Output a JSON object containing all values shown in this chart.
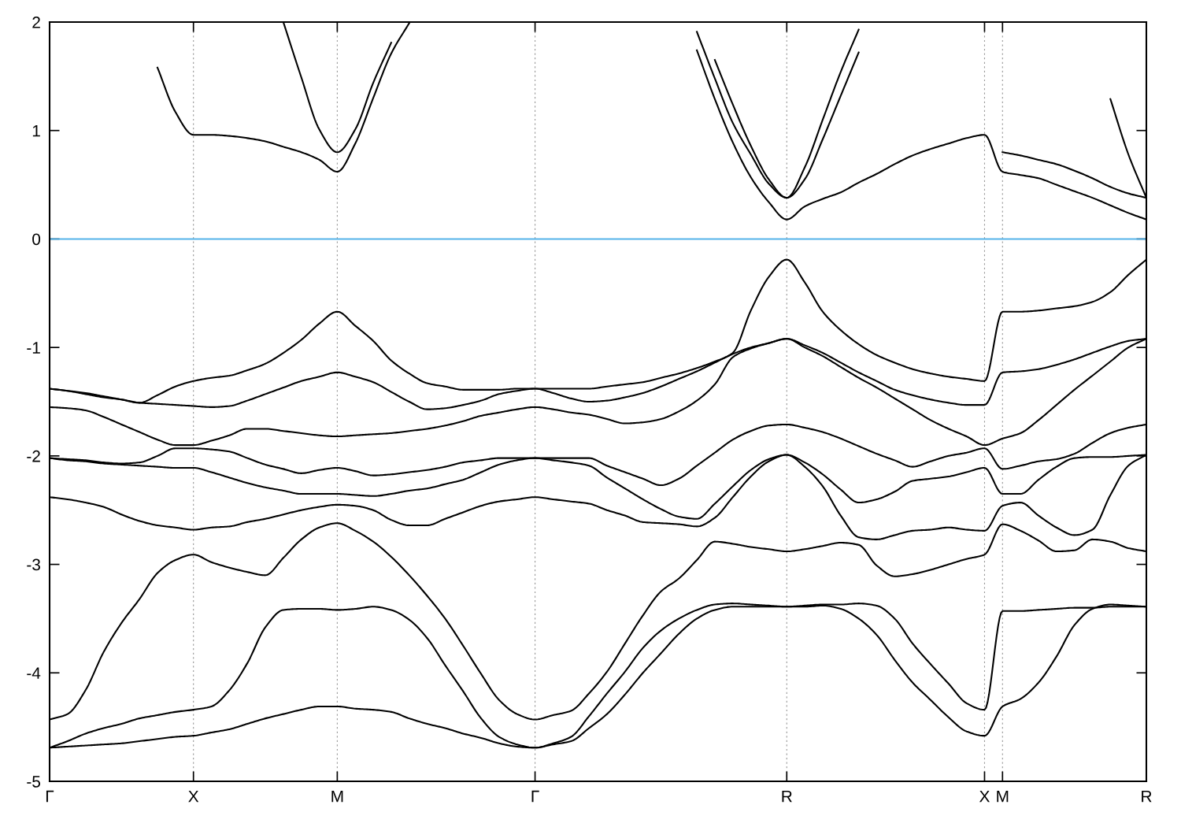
{
  "chart_data": {
    "type": "line",
    "categories": [
      "Γ",
      null,
      null,
      null,
      null,
      null,
      null,
      null,
      "X",
      null,
      null,
      null,
      null,
      null,
      null,
      null,
      "M",
      null,
      null,
      null,
      null,
      null,
      null,
      null,
      null,
      null,
      null,
      "Γ",
      null,
      null,
      null,
      null,
      null,
      null,
      null,
      null,
      null,
      null,
      null,
      null,
      null,
      "R",
      null,
      null,
      null,
      null,
      null,
      null,
      null,
      null,
      null,
      null,
      "X",
      "M",
      null,
      null,
      null,
      null,
      null,
      null,
      null,
      "R"
    ],
    "ylim": [
      -5,
      2
    ],
    "yticks": [
      -5,
      -4,
      -3,
      -2,
      -1,
      0,
      1,
      2
    ],
    "grid": "x",
    "line_style": "solid",
    "ref_lines": [
      {
        "axis": "y",
        "value": 0,
        "color": "#56b4e9",
        "line_style": "solid"
      }
    ],
    "series": [
      {
        "color": "#000000",
        "values": [
          -1.38,
          -1.4,
          -1.42,
          -1.45,
          -1.48,
          -1.51,
          -1.44,
          -1.36,
          -1.31,
          -1.28,
          -1.26,
          -1.21,
          -1.15,
          -1.05,
          -0.93,
          -0.78,
          -0.67,
          -0.8,
          -0.94,
          -1.12,
          -1.24,
          -1.33,
          -1.36,
          -1.39,
          -1.39,
          -1.39,
          -1.38,
          -1.38,
          -1.38,
          -1.38,
          -1.38,
          -1.36,
          -1.34,
          -1.32,
          -1.28,
          -1.24,
          -1.19,
          -1.13,
          -1.05,
          -0.66,
          -0.35,
          -0.19,
          -0.4,
          -0.67,
          -0.84,
          -0.97,
          -1.07,
          -1.14,
          -1.2,
          -1.24,
          -1.27,
          -1.29,
          -1.31,
          -0.67,
          -0.67,
          -0.66,
          -0.64,
          -0.62,
          -0.58,
          -0.49,
          -0.33,
          -0.19
        ]
      },
      {
        "color": "#000000",
        "values": [
          -1.38,
          -1.4,
          -1.43,
          -1.46,
          -1.48,
          -1.51,
          -1.52,
          -1.53,
          -1.54,
          -1.55,
          -1.54,
          -1.49,
          -1.43,
          -1.37,
          -1.31,
          -1.27,
          -1.23,
          -1.27,
          -1.32,
          -1.41,
          -1.5,
          -1.57,
          -1.56,
          -1.53,
          -1.49,
          -1.43,
          -1.4,
          -1.38,
          -1.42,
          -1.47,
          -1.5,
          -1.49,
          -1.46,
          -1.42,
          -1.36,
          -1.29,
          -1.22,
          -1.14,
          -1.06,
          -1.0,
          -0.96,
          -0.92,
          -0.98,
          -1.05,
          -1.14,
          -1.23,
          -1.31,
          -1.39,
          -1.44,
          -1.48,
          -1.51,
          -1.53,
          -1.53,
          -1.23,
          -1.22,
          -1.2,
          -1.16,
          -1.11,
          -1.05,
          -0.99,
          -0.94,
          -0.92
        ]
      },
      {
        "color": "#000000",
        "values": [
          -1.55,
          -1.56,
          -1.58,
          -1.64,
          -1.71,
          -1.78,
          -1.85,
          -1.9,
          -1.9,
          -1.86,
          -1.81,
          -1.75,
          -1.75,
          -1.77,
          -1.79,
          -1.81,
          -1.82,
          -1.81,
          -1.8,
          -1.79,
          -1.77,
          -1.75,
          -1.72,
          -1.68,
          -1.63,
          -1.6,
          -1.57,
          -1.55,
          -1.57,
          -1.6,
          -1.62,
          -1.66,
          -1.7,
          -1.69,
          -1.66,
          -1.59,
          -1.49,
          -1.34,
          -1.09,
          -1.01,
          -0.96,
          -0.92,
          -1.0,
          -1.08,
          -1.18,
          -1.28,
          -1.37,
          -1.47,
          -1.57,
          -1.67,
          -1.75,
          -1.82,
          -1.9,
          -1.84,
          -1.79,
          -1.67,
          -1.53,
          -1.39,
          -1.26,
          -1.13,
          -1.0,
          -0.92
        ]
      },
      {
        "color": "#000000",
        "values": [
          -2.02,
          -2.03,
          -2.04,
          -2.06,
          -2.07,
          -2.06,
          -2.0,
          -1.93,
          -1.93,
          -1.94,
          -1.96,
          -2.02,
          -2.08,
          -2.12,
          -2.16,
          -2.13,
          -2.11,
          -2.14,
          -2.18,
          -2.17,
          -2.15,
          -2.13,
          -2.1,
          -2.06,
          -2.04,
          -2.02,
          -2.02,
          -2.02,
          -2.02,
          -2.02,
          -2.02,
          -2.09,
          -2.15,
          -2.21,
          -2.27,
          -2.21,
          -2.09,
          -1.97,
          -1.85,
          -1.77,
          -1.72,
          -1.71,
          -1.74,
          -1.78,
          -1.84,
          -1.91,
          -1.98,
          -2.04,
          -2.1,
          -2.05,
          -2.0,
          -1.97,
          -1.93,
          -2.12,
          -2.09,
          -2.05,
          -2.03,
          -1.98,
          -1.88,
          -1.79,
          -1.74,
          -1.71
        ]
      },
      {
        "color": "#000000",
        "values": [
          -2.02,
          -2.04,
          -2.05,
          -2.07,
          -2.08,
          -2.09,
          -2.1,
          -2.11,
          -2.11,
          -2.15,
          -2.2,
          -2.25,
          -2.29,
          -2.32,
          -2.35,
          -2.35,
          -2.35,
          -2.36,
          -2.37,
          -2.35,
          -2.32,
          -2.3,
          -2.26,
          -2.22,
          -2.15,
          -2.08,
          -2.04,
          -2.02,
          -2.04,
          -2.06,
          -2.09,
          -2.2,
          -2.3,
          -2.4,
          -2.49,
          -2.56,
          -2.58,
          -2.44,
          -2.28,
          -2.13,
          -2.03,
          -1.99,
          -2.06,
          -2.17,
          -2.31,
          -2.43,
          -2.4,
          -2.33,
          -2.23,
          -2.21,
          -2.19,
          -2.15,
          -2.11,
          -2.35,
          -2.35,
          -2.22,
          -2.1,
          -2.02,
          -2.01,
          -2.01,
          -2.0,
          -1.99
        ]
      },
      {
        "color": "#000000",
        "values": [
          -2.38,
          -2.4,
          -2.43,
          -2.47,
          -2.54,
          -2.6,
          -2.64,
          -2.66,
          -2.68,
          -2.66,
          -2.65,
          -2.61,
          -2.58,
          -2.54,
          -2.5,
          -2.47,
          -2.45,
          -2.46,
          -2.5,
          -2.59,
          -2.64,
          -2.64,
          -2.58,
          -2.52,
          -2.46,
          -2.42,
          -2.4,
          -2.38,
          -2.4,
          -2.42,
          -2.44,
          -2.5,
          -2.55,
          -2.61,
          -2.62,
          -2.63,
          -2.65,
          -2.57,
          -2.38,
          -2.19,
          -2.05,
          -1.99,
          -2.1,
          -2.28,
          -2.55,
          -2.75,
          -2.77,
          -2.73,
          -2.69,
          -2.68,
          -2.66,
          -2.68,
          -2.69,
          -2.46,
          -2.43,
          -2.55,
          -2.66,
          -2.73,
          -2.68,
          -2.36,
          -2.09,
          -1.99
        ]
      },
      {
        "color": "#000000",
        "values": [
          -4.43,
          -4.38,
          -4.16,
          -3.81,
          -3.54,
          -3.32,
          -3.08,
          -2.96,
          -2.91,
          -2.98,
          -3.03,
          -3.07,
          -3.1,
          -2.94,
          -2.77,
          -2.66,
          -2.62,
          -2.69,
          -2.79,
          -2.93,
          -3.1,
          -3.29,
          -3.5,
          -3.75,
          -4.01,
          -4.25,
          -4.38,
          -4.43,
          -4.39,
          -4.35,
          -4.19,
          -3.99,
          -3.73,
          -3.47,
          -3.25,
          -3.13,
          -2.96,
          -2.79,
          -2.81,
          -2.84,
          -2.86,
          -2.88,
          -2.86,
          -2.83,
          -2.8,
          -2.82,
          -3.01,
          -3.11,
          -3.09,
          -3.05,
          -3.0,
          -2.95,
          -2.91,
          -2.63,
          -2.69,
          -2.78,
          -2.88,
          -2.87,
          -2.77,
          -2.79,
          -2.85,
          -2.88
        ]
      },
      {
        "color": "#000000",
        "values": [
          -4.69,
          -4.63,
          -4.56,
          -4.51,
          -4.47,
          -4.42,
          -4.39,
          -4.36,
          -4.34,
          -4.31,
          -4.16,
          -3.91,
          -3.58,
          -3.42,
          -3.41,
          -3.41,
          -3.42,
          -3.41,
          -3.39,
          -3.42,
          -3.51,
          -3.68,
          -3.93,
          -4.17,
          -4.42,
          -4.59,
          -4.66,
          -4.69,
          -4.65,
          -4.59,
          -4.4,
          -4.19,
          -3.99,
          -3.77,
          -3.61,
          -3.5,
          -3.42,
          -3.37,
          -3.36,
          -3.37,
          -3.38,
          -3.39,
          -3.38,
          -3.37,
          -3.37,
          -3.36,
          -3.38,
          -3.5,
          -3.73,
          -3.92,
          -4.1,
          -4.28,
          -4.34,
          -3.43,
          -3.43,
          -3.42,
          -3.41,
          -3.4,
          -3.4,
          -3.39,
          -3.39,
          -3.39
        ]
      },
      {
        "color": "#000000",
        "values": [
          -4.69,
          -4.68,
          -4.67,
          -4.66,
          -4.65,
          -4.63,
          -4.61,
          -4.59,
          -4.58,
          -4.55,
          -4.52,
          -4.47,
          -4.42,
          -4.38,
          -4.34,
          -4.31,
          -4.31,
          -4.33,
          -4.34,
          -4.36,
          -4.42,
          -4.47,
          -4.51,
          -4.56,
          -4.6,
          -4.65,
          -4.68,
          -4.69,
          -4.66,
          -4.63,
          -4.51,
          -4.38,
          -4.2,
          -4.0,
          -3.82,
          -3.64,
          -3.5,
          -3.42,
          -3.39,
          -3.39,
          -3.39,
          -3.39,
          -3.39,
          -3.38,
          -3.41,
          -3.5,
          -3.65,
          -3.88,
          -4.09,
          -4.25,
          -4.41,
          -4.54,
          -4.58,
          -4.31,
          -4.24,
          -4.09,
          -3.85,
          -3.56,
          -3.41,
          -3.37,
          -3.38,
          -3.39
        ]
      },
      {
        "color": "#000000",
        "values": [
          null,
          null,
          null,
          null,
          null,
          null,
          1.58,
          1.17,
          0.96,
          0.96,
          0.95,
          0.93,
          0.9,
          0.85,
          0.8,
          0.73,
          0.62,
          0.88,
          1.3,
          1.71,
          1.99,
          null,
          null,
          null,
          null,
          null,
          null,
          null,
          null,
          null,
          null,
          null,
          null,
          null,
          null,
          null,
          1.74,
          1.29,
          0.89,
          0.57,
          0.34,
          0.18,
          0.3,
          0.37,
          0.43,
          0.52,
          0.6,
          0.69,
          0.77,
          0.83,
          0.88,
          0.93,
          0.96,
          0.62,
          0.59,
          0.56,
          0.5,
          0.44,
          0.38,
          0.31,
          0.24,
          0.18
        ]
      },
      {
        "color": "#000000",
        "values": [
          null,
          null,
          null,
          null,
          null,
          null,
          null,
          null,
          null,
          null,
          null,
          null,
          null,
          2.0,
          1.49,
          1.01,
          0.8,
          1.01,
          1.44,
          1.81,
          null,
          null,
          null,
          null,
          null,
          null,
          null,
          null,
          null,
          null,
          null,
          null,
          null,
          null,
          null,
          null,
          1.91,
          1.48,
          1.07,
          0.78,
          0.51,
          0.38,
          0.55,
          0.92,
          1.32,
          1.72,
          null,
          null,
          null,
          null,
          null,
          null,
          null,
          0.8,
          0.77,
          0.73,
          0.69,
          0.63,
          0.56,
          0.48,
          0.42,
          0.38
        ]
      },
      {
        "color": "#000000",
        "values": [
          null,
          null,
          null,
          null,
          null,
          null,
          null,
          null,
          null,
          null,
          null,
          null,
          null,
          null,
          null,
          null,
          null,
          null,
          null,
          null,
          null,
          null,
          null,
          null,
          null,
          null,
          null,
          null,
          null,
          null,
          null,
          null,
          null,
          null,
          null,
          null,
          null,
          1.65,
          1.24,
          0.86,
          0.55,
          0.38,
          0.66,
          1.1,
          1.54,
          1.93,
          null,
          null,
          null,
          null,
          null,
          null,
          null,
          null,
          null,
          null,
          null,
          null,
          null,
          1.29,
          0.78,
          0.38
        ]
      }
    ]
  }
}
